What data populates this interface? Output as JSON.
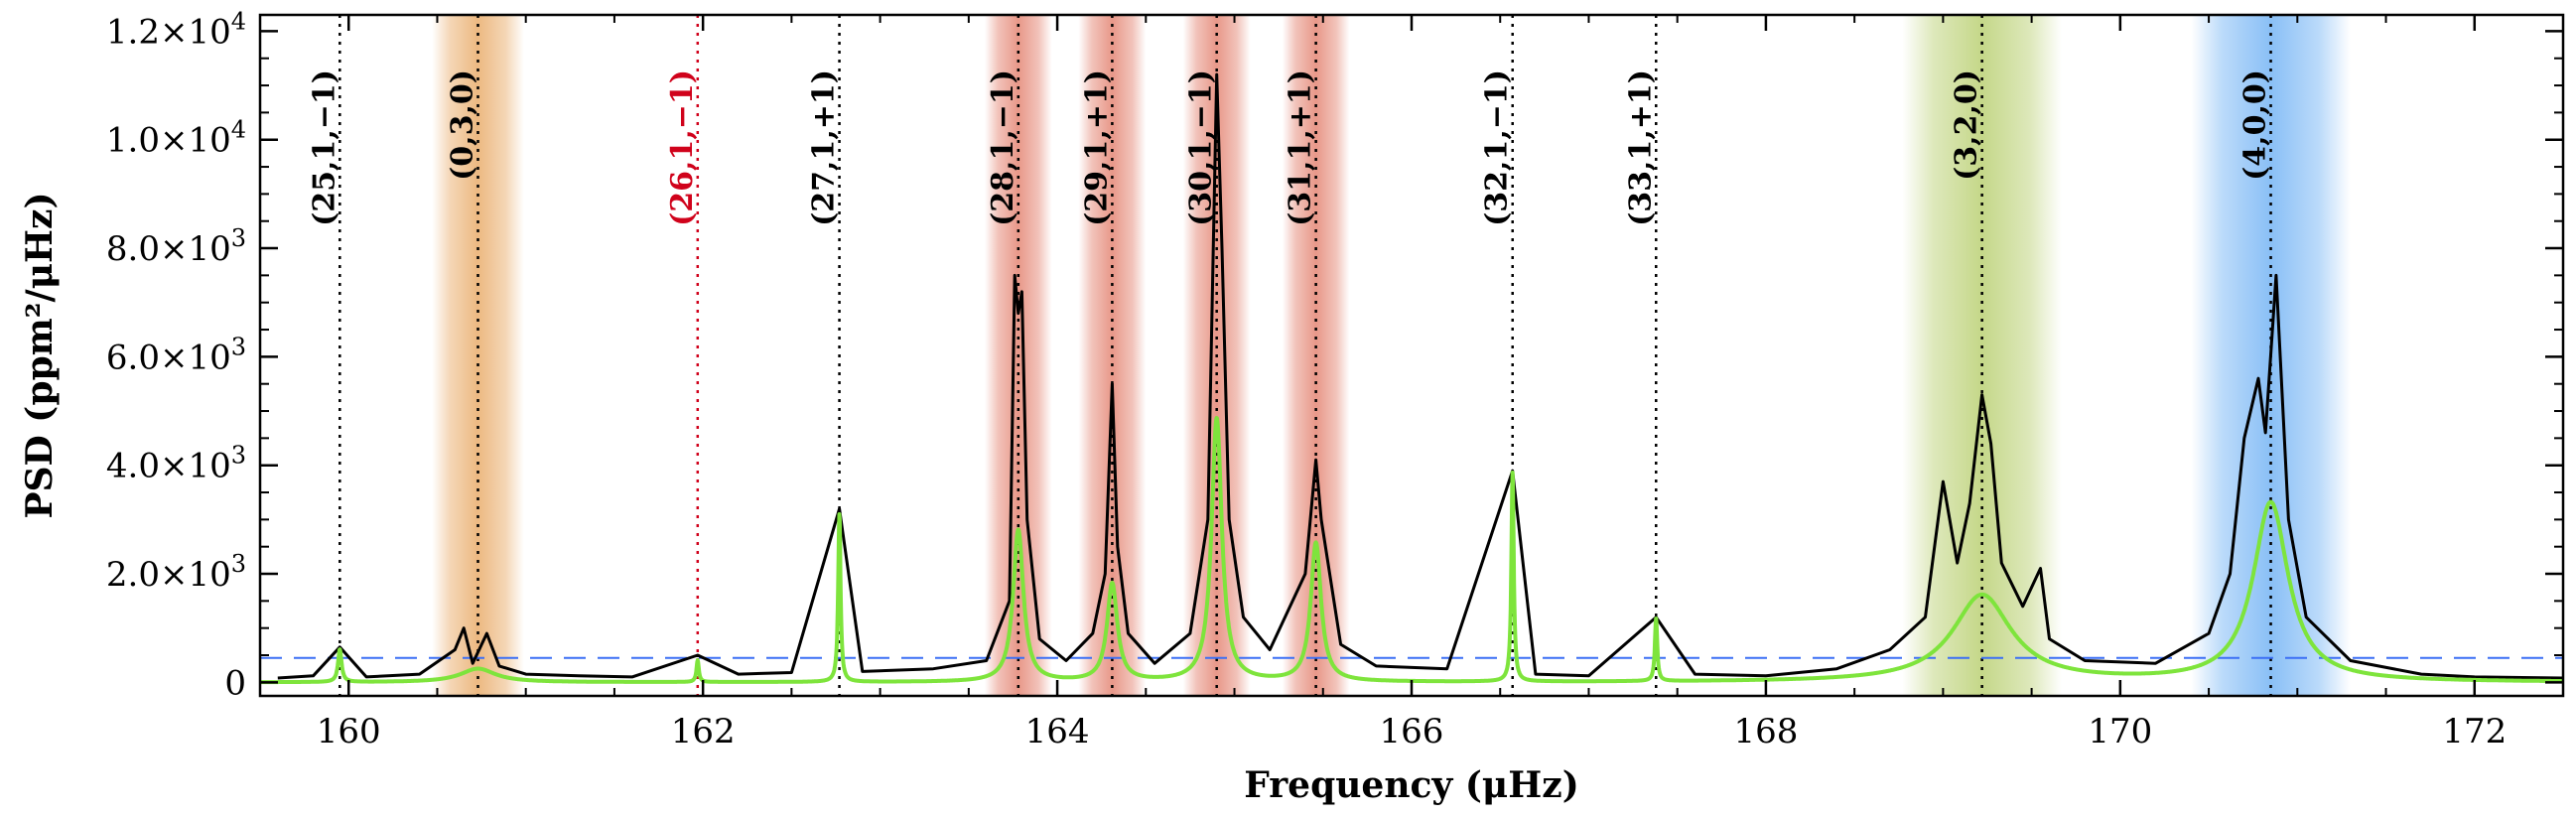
{
  "chart_data": {
    "type": "line",
    "xlabel": "Frequency (μHz)",
    "ylabel": "PSD (ppm²/μHz)",
    "xlim": [
      159.5,
      172.5
    ],
    "ylim": [
      -250,
      12300
    ],
    "x_ticks": [
      160,
      162,
      164,
      166,
      168,
      170,
      172
    ],
    "x_tick_labels": [
      "160",
      "162",
      "164",
      "166",
      "168",
      "170",
      "172"
    ],
    "y_ticks": [
      0,
      2000,
      4000,
      6000,
      8000,
      10000,
      12000
    ],
    "y_tick_labels": [
      {
        "mantissa": "0",
        "exp": ""
      },
      {
        "mantissa": "2.0×10",
        "exp": "3"
      },
      {
        "mantissa": "4.0×10",
        "exp": "3"
      },
      {
        "mantissa": "6.0×10",
        "exp": "3"
      },
      {
        "mantissa": "8.0×10",
        "exp": "3"
      },
      {
        "mantissa": "1.0×10",
        "exp": "4"
      },
      {
        "mantissa": "1.2×10",
        "exp": "4"
      }
    ],
    "grid": false,
    "threshold_level": 450,
    "colors": {
      "spectrum": "#000000",
      "fit": "#7ee43c",
      "threshold": "#3b6ff5",
      "marker": "#000000",
      "marker_highlight": "#d0021b",
      "band_orange": "#e08a2e",
      "band_red": "#d9533a",
      "band_green": "#9ebd3a",
      "band_blue": "#3b95f0"
    },
    "bands": [
      {
        "center": 160.73,
        "half_width": 0.26,
        "color": "band_orange"
      },
      {
        "center": 163.78,
        "half_width": 0.19,
        "color": "band_red"
      },
      {
        "center": 164.31,
        "half_width": 0.19,
        "color": "band_red"
      },
      {
        "center": 164.9,
        "half_width": 0.19,
        "color": "band_red"
      },
      {
        "center": 165.46,
        "half_width": 0.19,
        "color": "band_red"
      },
      {
        "center": 169.22,
        "half_width": 0.45,
        "color": "band_green"
      },
      {
        "center": 170.85,
        "half_width": 0.45,
        "color": "band_blue"
      }
    ],
    "mode_markers": [
      {
        "freq": 159.95,
        "label": "(25,1,−1)",
        "highlight": false
      },
      {
        "freq": 160.73,
        "label": "(0,3,0)",
        "highlight": false
      },
      {
        "freq": 161.97,
        "label": "(26,1,−1)",
        "highlight": true
      },
      {
        "freq": 162.77,
        "label": "(27,1,+1)",
        "highlight": false
      },
      {
        "freq": 163.78,
        "label": "(28,1,−1)",
        "highlight": false
      },
      {
        "freq": 164.31,
        "label": "(29,1,+1)",
        "highlight": false
      },
      {
        "freq": 164.9,
        "label": "(30,1,−1)",
        "highlight": false
      },
      {
        "freq": 165.46,
        "label": "(31,1,+1)",
        "highlight": false
      },
      {
        "freq": 166.57,
        "label": "(32,1,−1)",
        "highlight": false
      },
      {
        "freq": 167.38,
        "label": "(33,1,+1)",
        "highlight": false
      },
      {
        "freq": 169.22,
        "label": "(3,2,0)",
        "highlight": false
      },
      {
        "freq": 170.85,
        "label": "(4,0,0)",
        "highlight": false
      }
    ],
    "series": [
      {
        "kind": "spectrum",
        "points": [
          [
            159.6,
            80
          ],
          [
            159.8,
            120
          ],
          [
            159.95,
            650
          ],
          [
            160.1,
            100
          ],
          [
            160.4,
            150
          ],
          [
            160.6,
            600
          ],
          [
            160.65,
            1000
          ],
          [
            160.7,
            350
          ],
          [
            160.78,
            900
          ],
          [
            160.85,
            300
          ],
          [
            161.0,
            150
          ],
          [
            161.3,
            120
          ],
          [
            161.6,
            100
          ],
          [
            161.97,
            500
          ],
          [
            162.2,
            150
          ],
          [
            162.5,
            180
          ],
          [
            162.77,
            3200
          ],
          [
            162.9,
            200
          ],
          [
            163.3,
            250
          ],
          [
            163.6,
            400
          ],
          [
            163.73,
            1500
          ],
          [
            163.76,
            7500
          ],
          [
            163.78,
            6800
          ],
          [
            163.8,
            7200
          ],
          [
            163.83,
            3000
          ],
          [
            163.9,
            800
          ],
          [
            164.05,
            400
          ],
          [
            164.2,
            900
          ],
          [
            164.27,
            2000
          ],
          [
            164.31,
            5500
          ],
          [
            164.34,
            2500
          ],
          [
            164.4,
            900
          ],
          [
            164.55,
            350
          ],
          [
            164.75,
            900
          ],
          [
            164.85,
            3000
          ],
          [
            164.9,
            11200
          ],
          [
            164.93,
            8000
          ],
          [
            164.97,
            3000
          ],
          [
            165.05,
            1200
          ],
          [
            165.2,
            600
          ],
          [
            165.4,
            2000
          ],
          [
            165.46,
            4100
          ],
          [
            165.49,
            3000
          ],
          [
            165.6,
            700
          ],
          [
            165.8,
            300
          ],
          [
            166.2,
            250
          ],
          [
            166.57,
            3900
          ],
          [
            166.7,
            150
          ],
          [
            167.0,
            120
          ],
          [
            167.38,
            1200
          ],
          [
            167.6,
            150
          ],
          [
            168.0,
            120
          ],
          [
            168.4,
            250
          ],
          [
            168.7,
            600
          ],
          [
            168.9,
            1200
          ],
          [
            169.0,
            3700
          ],
          [
            169.08,
            2200
          ],
          [
            169.15,
            3300
          ],
          [
            169.22,
            5300
          ],
          [
            169.27,
            4400
          ],
          [
            169.33,
            2200
          ],
          [
            169.45,
            1400
          ],
          [
            169.55,
            2100
          ],
          [
            169.6,
            800
          ],
          [
            169.8,
            400
          ],
          [
            170.2,
            350
          ],
          [
            170.5,
            900
          ],
          [
            170.62,
            2000
          ],
          [
            170.7,
            4500
          ],
          [
            170.78,
            5600
          ],
          [
            170.82,
            4600
          ],
          [
            170.88,
            7500
          ],
          [
            170.95,
            3000
          ],
          [
            171.05,
            1200
          ],
          [
            171.3,
            400
          ],
          [
            171.7,
            150
          ],
          [
            172.0,
            100
          ],
          [
            172.5,
            80
          ]
        ]
      },
      {
        "kind": "fit",
        "lorentzians": [
          {
            "center": 159.95,
            "amp": 600,
            "gamma": 0.012
          },
          {
            "center": 160.73,
            "amp": 250,
            "gamma": 0.12
          },
          {
            "center": 161.97,
            "amp": 400,
            "gamma": 0.008
          },
          {
            "center": 162.77,
            "amp": 3100,
            "gamma": 0.008
          },
          {
            "center": 163.78,
            "amp": 2800,
            "gamma": 0.035
          },
          {
            "center": 164.31,
            "amp": 1800,
            "gamma": 0.035
          },
          {
            "center": 164.9,
            "amp": 4850,
            "gamma": 0.035
          },
          {
            "center": 165.46,
            "amp": 2550,
            "gamma": 0.035
          },
          {
            "center": 166.57,
            "amp": 3850,
            "gamma": 0.008
          },
          {
            "center": 167.38,
            "amp": 1150,
            "gamma": 0.008
          },
          {
            "center": 169.22,
            "amp": 1600,
            "gamma": 0.2
          },
          {
            "center": 170.85,
            "amp": 3300,
            "gamma": 0.12
          }
        ]
      }
    ]
  }
}
